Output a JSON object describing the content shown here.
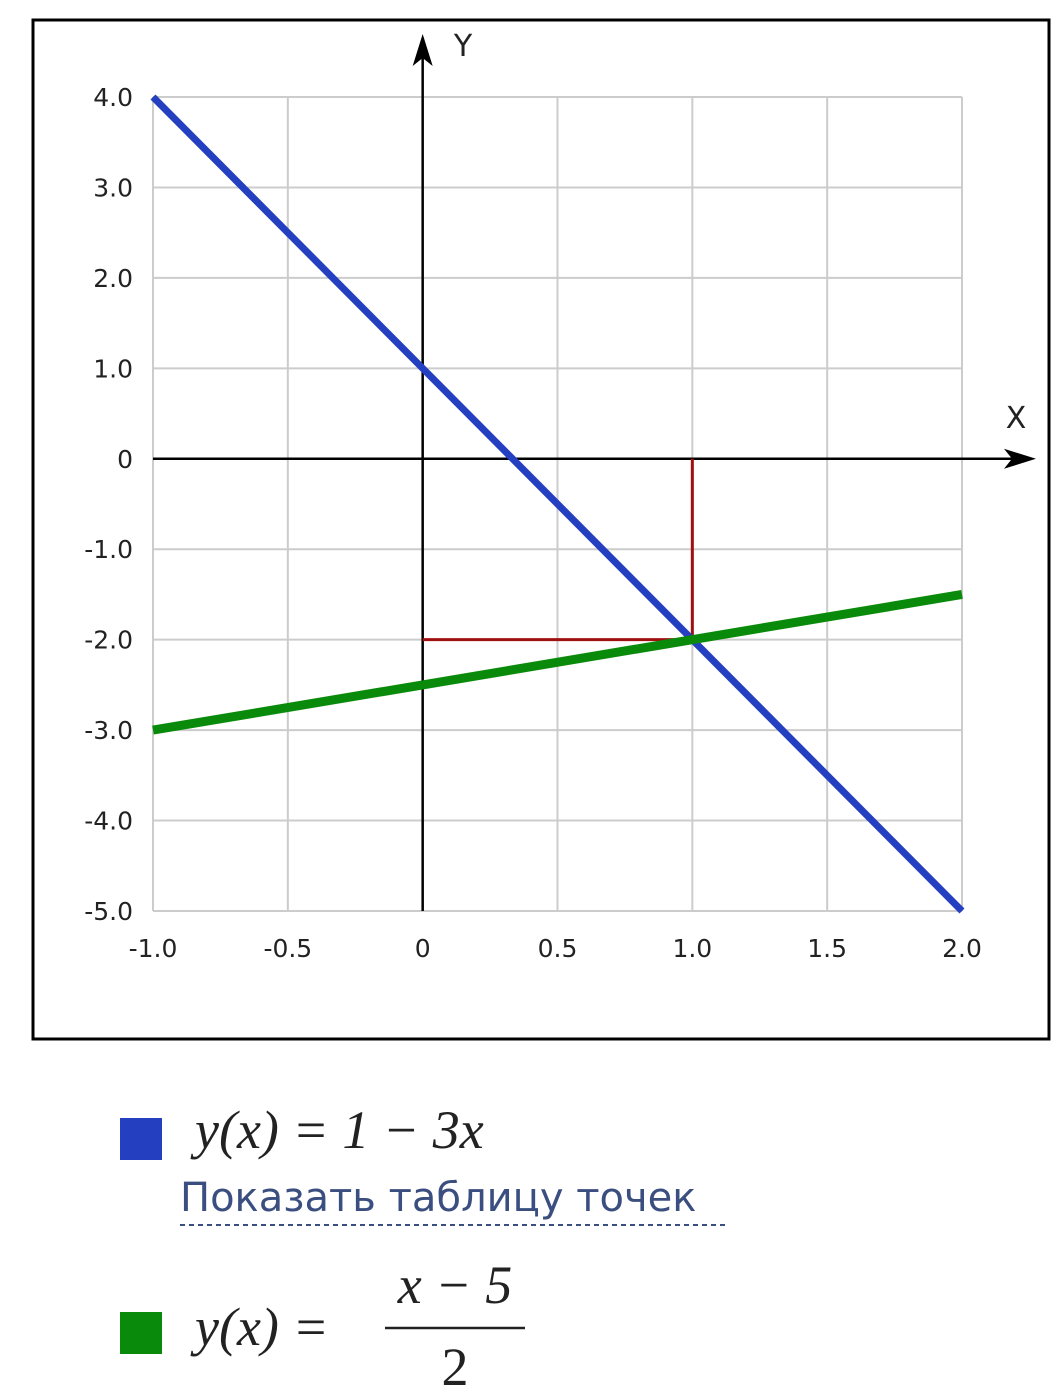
{
  "chart_data": {
    "type": "line",
    "x": [
      -1,
      2
    ],
    "series": [
      {
        "name": "y(x) = 1 − 3x",
        "color": "#2440c0",
        "values": [
          4,
          -5
        ]
      },
      {
        "name": "y(x) =",
        "fraction": {
          "numerator": "x − 5",
          "denominator": "2"
        },
        "color": "#0a8a0a",
        "values": [
          -3,
          -1.5
        ]
      }
    ],
    "projection": {
      "x": 1,
      "y": -2,
      "color": "#a01010"
    },
    "x_axis_label": "X",
    "y_axis_label": "Y",
    "xlim": [
      -1,
      2
    ],
    "xticks": [
      {
        "value": -1,
        "label": "-1.0"
      },
      -0.5,
      0,
      0.5,
      {
        "value": 1,
        "label": "1.0"
      },
      1.5,
      {
        "value": 2,
        "label": "2.0"
      }
    ],
    "ylim": [
      -5,
      4
    ],
    "yticks": [
      {
        "value": 4,
        "label": "4.0"
      },
      {
        "value": 3,
        "label": "3.0"
      },
      {
        "value": 2,
        "label": "2.0"
      },
      {
        "value": 1,
        "label": "1.0"
      },
      0,
      {
        "value": -1,
        "label": "-1.0"
      },
      {
        "value": -2,
        "label": "-2.0"
      },
      {
        "value": -3,
        "label": "-3.0"
      },
      {
        "value": -4,
        "label": "-4.0"
      },
      {
        "value": -5,
        "label": "-5.0"
      }
    ],
    "grid": true,
    "legend_link": "Показать таблицу точек"
  }
}
